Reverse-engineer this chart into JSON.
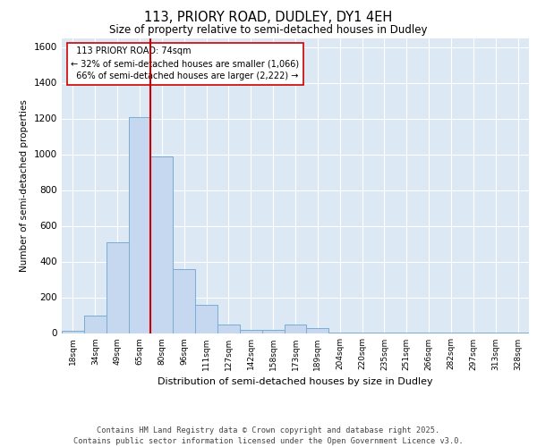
{
  "title_line1": "113, PRIORY ROAD, DUDLEY, DY1 4EH",
  "title_line2": "Size of property relative to semi-detached houses in Dudley",
  "xlabel": "Distribution of semi-detached houses by size in Dudley",
  "ylabel": "Number of semi-detached properties",
  "categories": [
    "18sqm",
    "34sqm",
    "49sqm",
    "65sqm",
    "80sqm",
    "96sqm",
    "111sqm",
    "127sqm",
    "142sqm",
    "158sqm",
    "173sqm",
    "189sqm",
    "204sqm",
    "220sqm",
    "235sqm",
    "251sqm",
    "266sqm",
    "282sqm",
    "297sqm",
    "313sqm",
    "328sqm"
  ],
  "values": [
    15,
    100,
    510,
    1210,
    990,
    360,
    160,
    50,
    20,
    20,
    50,
    30,
    5,
    5,
    2,
    2,
    2,
    2,
    1,
    1,
    1
  ],
  "bar_color": "#c5d8f0",
  "bar_edge_color": "#7aadd4",
  "property_label": "113 PRIORY ROAD: 74sqm",
  "pct_smaller": "32%",
  "count_smaller": "1,066",
  "pct_larger": "66%",
  "count_larger": "2,222",
  "red_line_color": "#cc0000",
  "background_color": "#dde8f5",
  "footer_line1": "Contains HM Land Registry data © Crown copyright and database right 2025.",
  "footer_line2": "Contains public sector information licensed under the Open Government Licence v3.0.",
  "ylim": [
    0,
    1650
  ],
  "yticks": [
    0,
    200,
    400,
    600,
    800,
    1000,
    1200,
    1400,
    1600
  ],
  "red_line_x": 3.5
}
